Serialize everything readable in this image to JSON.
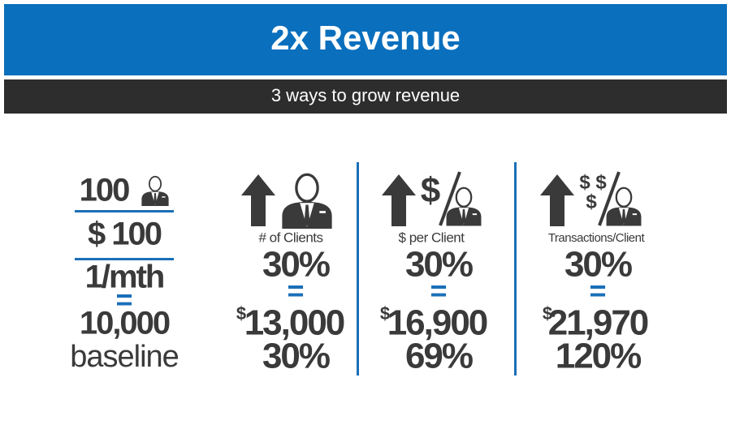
{
  "header": {
    "title": "2x Revenue",
    "subtitle": "3 ways to grow revenue"
  },
  "baseline": {
    "clients": "100",
    "price": "$ 100",
    "frequency": "1/mth",
    "equals": "=",
    "total": "10,000",
    "label": "baseline"
  },
  "columns": [
    {
      "label": "# of Clients",
      "growth": "30%",
      "equals": "=",
      "currency": "$",
      "total": "13,000",
      "total_growth": "30%"
    },
    {
      "icon_symbols": [
        "$"
      ],
      "label": "$ per Client",
      "growth": "30%",
      "equals": "=",
      "currency": "$",
      "total": "16,900",
      "total_growth": "69%"
    },
    {
      "icon_symbols": [
        "$",
        "$",
        "$"
      ],
      "label": "Transactions/Client",
      "growth": "30%",
      "equals": "=",
      "currency": "$",
      "total": "21,970",
      "total_growth": "120%"
    }
  ]
}
